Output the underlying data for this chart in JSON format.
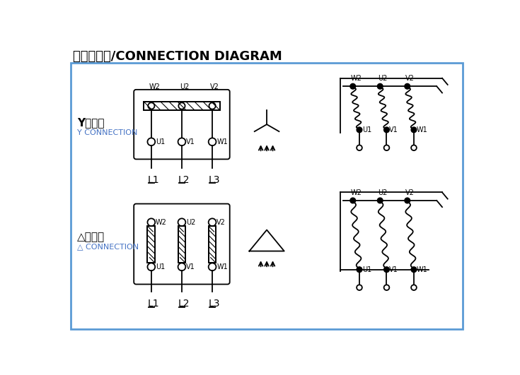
{
  "title_cn": "接线示意图",
  "title_en": "/CONNECTION DIAGRAM",
  "bg_color": "#ffffff",
  "border_color": "#5b9bd5",
  "text_color_black": "#000000",
  "text_color_blue": "#4472c4",
  "y_label_cn": "Y形接法",
  "y_label_en": "Y CONNECTION",
  "delta_label_cn": "△形接法",
  "delta_label_en": "△ CONNECTION",
  "terminal_labels_top": [
    "W2",
    "U2",
    "V2"
  ],
  "terminal_labels_bottom": [
    "U1",
    "V1",
    "W1"
  ],
  "line_labels": [
    "L1",
    "L2",
    "L3"
  ]
}
